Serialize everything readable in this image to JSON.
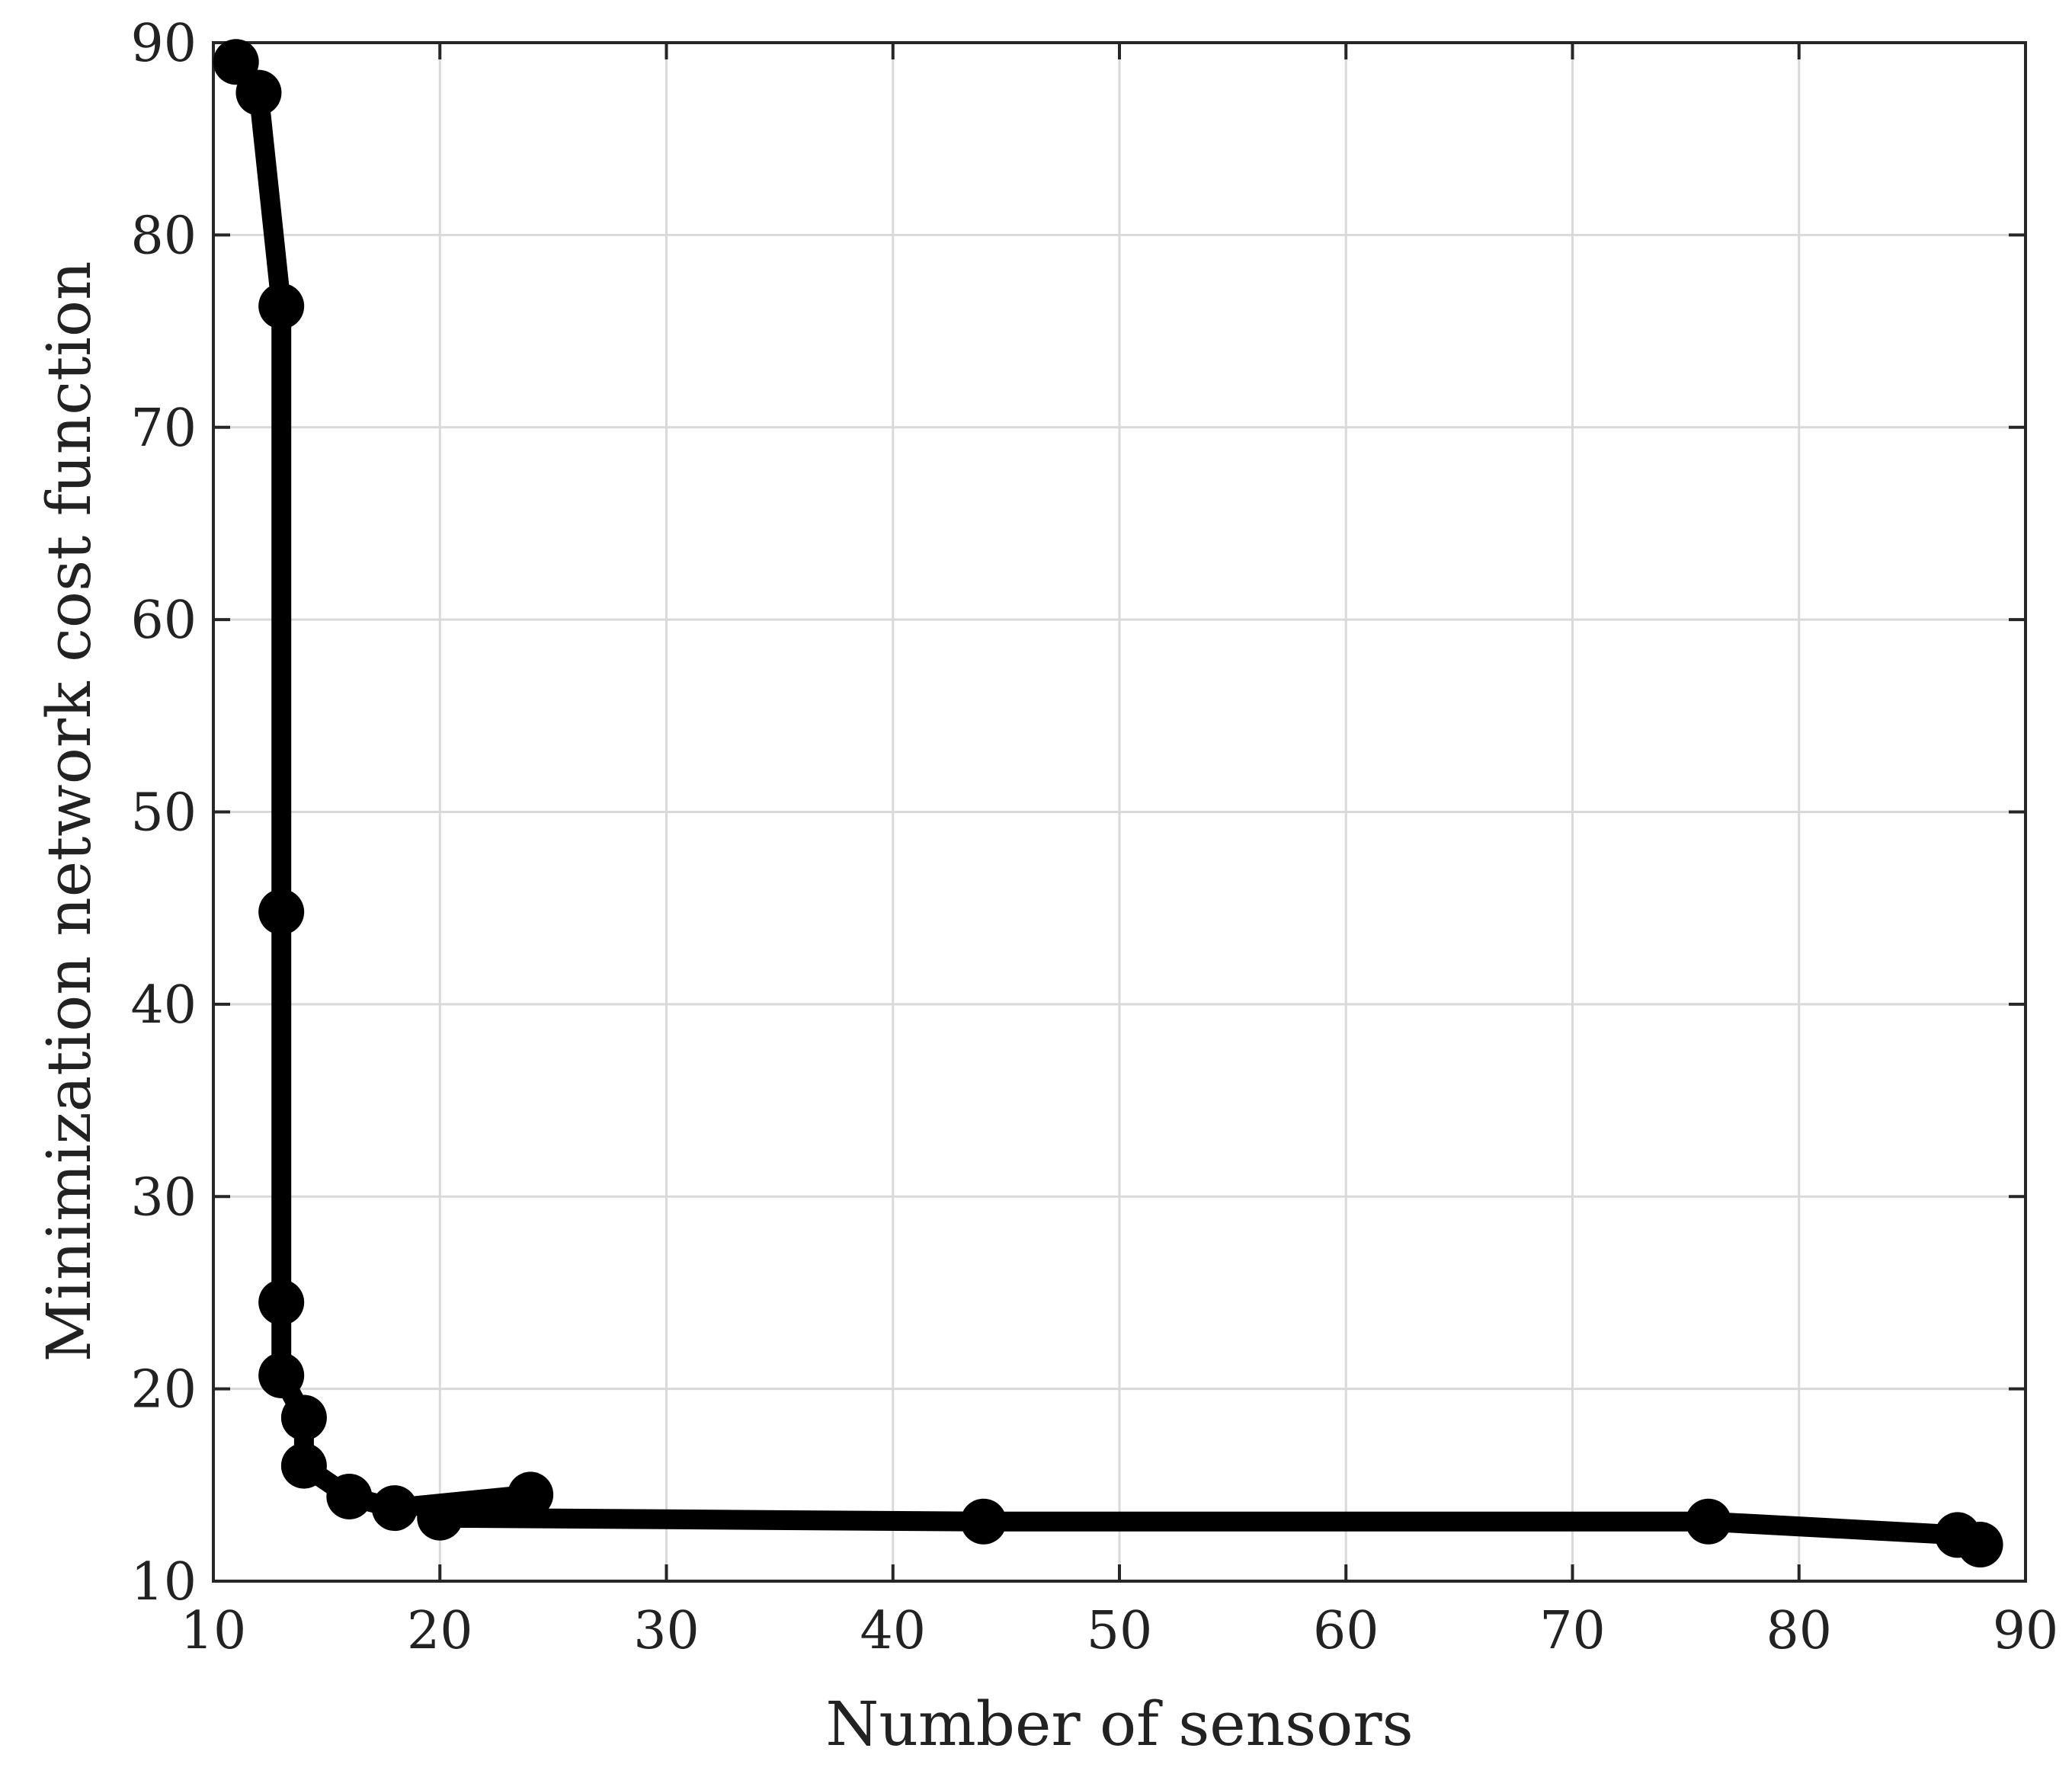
{
  "chart_data": {
    "type": "line",
    "title": "",
    "xlabel": "Number of sensors",
    "ylabel": "Minimization network cost function",
    "xlim": [
      10,
      90
    ],
    "ylim": [
      10,
      90
    ],
    "xticks": [
      10,
      20,
      30,
      40,
      50,
      60,
      70,
      80,
      90
    ],
    "yticks": [
      10,
      20,
      30,
      40,
      50,
      60,
      70,
      80,
      90
    ],
    "grid": true,
    "legend": "none",
    "colors": {
      "line": "#000000",
      "grid": "#d9d9d9",
      "axis": "#262626",
      "text": "#222222"
    },
    "series": [
      {
        "x": [
          11,
          12,
          13,
          13,
          13,
          13,
          14,
          14,
          16,
          18,
          24,
          20,
          44,
          76,
          87,
          88
        ],
        "y": [
          89,
          87.4,
          76.3,
          44.8,
          24.5,
          20.7,
          18.5,
          16.0,
          14.4,
          13.8,
          14.5,
          13.3,
          13.1,
          13.1,
          12.4,
          11.9
        ]
      }
    ]
  }
}
